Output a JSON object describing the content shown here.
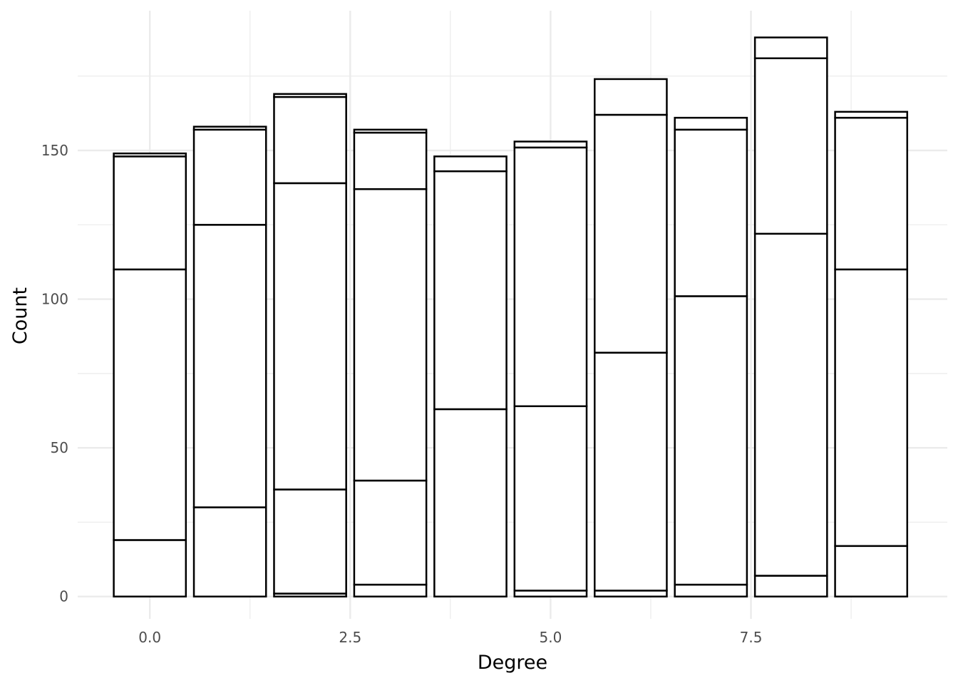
{
  "chart_data": {
    "type": "bar",
    "stacked": true,
    "xlabel": "Degree",
    "ylabel": "Count",
    "x": [
      0,
      1,
      2,
      3,
      4,
      5,
      6,
      7,
      8,
      9
    ],
    "stacks": [
      [
        0,
        19,
        110,
        148,
        149
      ],
      [
        0,
        30,
        125,
        157,
        158
      ],
      [
        0,
        1,
        36,
        139,
        168,
        169
      ],
      [
        0,
        4,
        39,
        137,
        156,
        157
      ],
      [
        0,
        63,
        143,
        148
      ],
      [
        0,
        2,
        64,
        151,
        153
      ],
      [
        0,
        2,
        82,
        162,
        174
      ],
      [
        0,
        4,
        101,
        157,
        161
      ],
      [
        0,
        7,
        122,
        181,
        188
      ],
      [
        0,
        17,
        110,
        161,
        163
      ]
    ],
    "totals": [
      149,
      158,
      169,
      157,
      148,
      153,
      174,
      161,
      188,
      163
    ],
    "xlim": [
      -0.9,
      9.95
    ],
    "ylim": [
      -7.5,
      197
    ],
    "x_ticks": [
      {
        "value": 0,
        "label": "0.0"
      },
      {
        "value": 2.5,
        "label": "2.5"
      },
      {
        "value": 5,
        "label": "5.0"
      },
      {
        "value": 7.5,
        "label": "7.5"
      }
    ],
    "y_ticks": [
      {
        "value": 0,
        "label": "0"
      },
      {
        "value": 50,
        "label": "50"
      },
      {
        "value": 100,
        "label": "100"
      },
      {
        "value": 150,
        "label": "150"
      }
    ],
    "x_minor": [
      1.25,
      3.75,
      6.25,
      8.75
    ],
    "y_minor": [
      25,
      75,
      125,
      175
    ],
    "bar_width": 0.9,
    "grid": true,
    "colors": {
      "fill": "#ffffff",
      "stroke": "#000000",
      "grid": "#ebebeb",
      "tick_text": "#4d4d4d"
    }
  }
}
